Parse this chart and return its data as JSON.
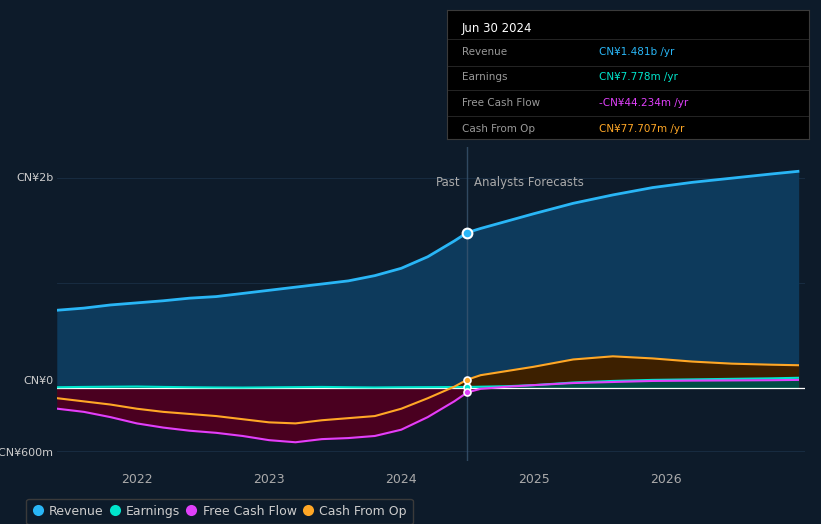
{
  "bg_color": "#0d1b2a",
  "plot_bg_color": "#0d1b2a",
  "y2b_label": "CN¥2b",
  "y0_label": "CN¥0",
  "yneg600_label": "-CN¥600m",
  "past_label": "Past",
  "forecast_label": "Analysts Forecasts",
  "divider_x": 2024.5,
  "ylim": [
    -700,
    2300
  ],
  "xlim": [
    2021.4,
    2027.05
  ],
  "xticks": [
    2022,
    2023,
    2024,
    2025,
    2026
  ],
  "revenue_color": "#29b6f6",
  "revenue_fill_color": "#0d3a5c",
  "earnings_color": "#00e5cc",
  "earnings_fill_color": "#004d45",
  "fcf_color": "#e040fb",
  "fcf_fill_color": "#4a0020",
  "cashop_color": "#ffa726",
  "cashop_fill_color": "#3d2000",
  "zero_line_color": "#ffffff",
  "divider_line_color": "#3a5570",
  "grid_color": "#1a2f45",
  "tooltip_bg": "#000000",
  "tooltip_title": "Jun 30 2024",
  "tooltip_revenue_val": "CN¥1.481b /yr",
  "tooltip_earnings_val": "CN¥7.778m /yr",
  "tooltip_fcf_val": "-CN¥44.234m /yr",
  "tooltip_cashop_val": "CN¥77.707m /yr",
  "revenue_x": [
    2021.4,
    2021.6,
    2021.8,
    2022.0,
    2022.2,
    2022.4,
    2022.6,
    2022.8,
    2023.0,
    2023.2,
    2023.4,
    2023.6,
    2023.8,
    2024.0,
    2024.2,
    2024.4,
    2024.5,
    2024.6,
    2024.8,
    2025.0,
    2025.3,
    2025.6,
    2025.9,
    2026.2,
    2026.5,
    2026.8,
    2027.0
  ],
  "revenue_y": [
    740,
    760,
    790,
    810,
    830,
    855,
    870,
    900,
    930,
    960,
    990,
    1020,
    1070,
    1140,
    1250,
    1400,
    1481,
    1520,
    1590,
    1660,
    1760,
    1840,
    1910,
    1960,
    2000,
    2040,
    2065
  ],
  "earnings_x": [
    2021.4,
    2021.6,
    2021.8,
    2022.0,
    2022.2,
    2022.4,
    2022.6,
    2022.8,
    2023.0,
    2023.2,
    2023.4,
    2023.6,
    2023.8,
    2024.0,
    2024.2,
    2024.4,
    2024.5,
    2024.6,
    2024.8,
    2025.0,
    2025.3,
    2025.6,
    2025.9,
    2026.2,
    2026.5,
    2026.8,
    2027.0
  ],
  "earnings_y": [
    5,
    8,
    10,
    12,
    8,
    5,
    3,
    2,
    4,
    6,
    8,
    5,
    3,
    5,
    6,
    7,
    7.778,
    10,
    15,
    25,
    50,
    65,
    75,
    80,
    85,
    90,
    95
  ],
  "fcf_x": [
    2021.4,
    2021.6,
    2021.8,
    2022.0,
    2022.2,
    2022.4,
    2022.6,
    2022.8,
    2023.0,
    2023.2,
    2023.4,
    2023.6,
    2023.8,
    2024.0,
    2024.2,
    2024.4,
    2024.5,
    2024.6,
    2024.8,
    2025.0,
    2025.3,
    2025.6,
    2025.9,
    2026.2,
    2026.5,
    2026.8,
    2027.0
  ],
  "fcf_y": [
    -200,
    -230,
    -280,
    -340,
    -380,
    -410,
    -430,
    -460,
    -500,
    -520,
    -490,
    -480,
    -460,
    -400,
    -280,
    -130,
    -44,
    -10,
    10,
    25,
    45,
    55,
    65,
    68,
    70,
    72,
    75
  ],
  "cashop_x": [
    2021.4,
    2021.6,
    2021.8,
    2022.0,
    2022.2,
    2022.4,
    2022.6,
    2022.8,
    2023.0,
    2023.2,
    2023.4,
    2023.6,
    2023.8,
    2024.0,
    2024.2,
    2024.4,
    2024.5,
    2024.6,
    2024.8,
    2025.0,
    2025.3,
    2025.6,
    2025.9,
    2026.2,
    2026.5,
    2026.8,
    2027.0
  ],
  "cashop_y": [
    -100,
    -130,
    -160,
    -200,
    -230,
    -250,
    -270,
    -300,
    -330,
    -340,
    -310,
    -290,
    -270,
    -200,
    -100,
    10,
    77.707,
    120,
    160,
    200,
    270,
    300,
    280,
    250,
    230,
    220,
    215
  ],
  "legend_items": [
    {
      "label": "Revenue",
      "color": "#29b6f6"
    },
    {
      "label": "Earnings",
      "color": "#00e5cc"
    },
    {
      "label": "Free Cash Flow",
      "color": "#e040fb"
    },
    {
      "label": "Cash From Op",
      "color": "#ffa726"
    }
  ]
}
